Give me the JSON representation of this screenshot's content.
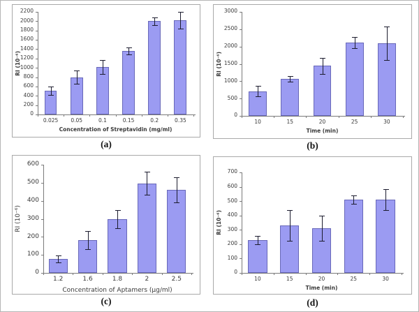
{
  "figure": {
    "captions": {
      "a": "(a)",
      "b": "(b)",
      "c": "(c)",
      "d": "(d)"
    }
  },
  "colors": {
    "bar_fill": "#9b9bf2",
    "bar_border": "#6868b8",
    "error_bar": "#1c1c2e",
    "axis": "#7a7a7a",
    "tick_text": "#3a3a3a",
    "panel_border": "#a9a9a9",
    "outer_border": "#b5b5b5",
    "background": "#ffffff"
  },
  "chart_data": [
    {
      "panel": "a",
      "type": "bar",
      "categories": [
        "0.025",
        "0.05",
        "0.1",
        "0.15",
        "0.2",
        "0.35"
      ],
      "values": [
        510,
        800,
        1020,
        1360,
        2000,
        2020
      ],
      "errors": [
        90,
        145,
        145,
        70,
        80,
        175
      ],
      "xlabel": "Concentration of Streptavidin (mg/ml)",
      "ylabel": "RI (10⁻⁶)",
      "ylim": [
        0,
        2200
      ],
      "yticks": [
        0,
        200,
        400,
        600,
        800,
        1000,
        1200,
        1400,
        1600,
        1800,
        2000,
        2200
      ],
      "grid": false,
      "legend": null
    },
    {
      "panel": "b",
      "type": "bar",
      "categories": [
        "10",
        "15",
        "20",
        "25",
        "30"
      ],
      "values": [
        710,
        1070,
        1440,
        2120,
        2090
      ],
      "errors": [
        150,
        80,
        230,
        160,
        480
      ],
      "xlabel": "Time (min)",
      "ylabel": "RI (10⁻⁶)",
      "ylim": [
        0,
        3000
      ],
      "yticks": [
        0,
        500,
        1000,
        1500,
        2000,
        2500,
        3000
      ],
      "grid": false,
      "legend": null
    },
    {
      "panel": "c",
      "type": "bar",
      "categories": [
        "1.2",
        "1.6",
        "1.8",
        "2",
        "2.5"
      ],
      "values": [
        78,
        183,
        298,
        497,
        462
      ],
      "errors": [
        20,
        50,
        52,
        65,
        70
      ],
      "xlabel": "Concentration of Aptamers (µg/ml)",
      "ylabel": "RI (10⁻⁶)",
      "ylim": [
        0,
        600
      ],
      "yticks": [
        0,
        100,
        200,
        300,
        400,
        500,
        600
      ],
      "grid": false,
      "legend": null
    },
    {
      "panel": "d",
      "type": "bar",
      "categories": [
        "10",
        "15",
        "20",
        "25",
        "30"
      ],
      "values": [
        230,
        330,
        310,
        510,
        510
      ],
      "errors": [
        30,
        108,
        88,
        30,
        72
      ],
      "xlabel": "Time (min)",
      "ylabel": "RI (10⁻⁶)",
      "ylim": [
        0,
        700
      ],
      "yticks": [
        0,
        100,
        200,
        300,
        400,
        500,
        600,
        700
      ],
      "grid": false,
      "legend": null
    }
  ]
}
